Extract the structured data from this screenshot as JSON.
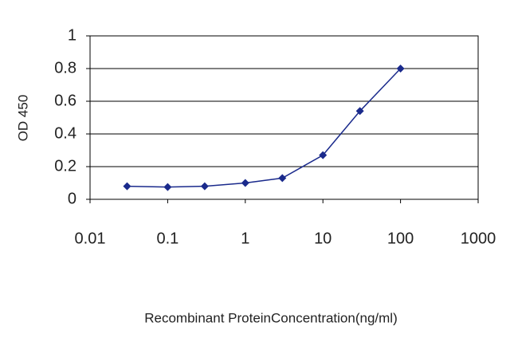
{
  "chart_data": {
    "type": "line",
    "y_label": "OD 450",
    "x_label": "Recombinant ProteinConcentration(ng/ml)",
    "x": [
      0.03,
      0.1,
      0.3,
      1,
      3,
      10,
      30,
      100
    ],
    "series": [
      {
        "color": "#1a2a8c",
        "values": [
          0.08,
          0.075,
          0.08,
          0.1,
          0.13,
          0.27,
          0.54,
          0.8
        ]
      }
    ],
    "xlim": [
      0.01,
      1000
    ],
    "xticks": [
      0.01,
      0.1,
      1,
      10,
      100,
      1000
    ],
    "xscale": "log",
    "ylim": [
      0,
      1
    ],
    "yticks": [
      0,
      0.2,
      0.4,
      0.6,
      0.8,
      1
    ],
    "grid": true
  }
}
